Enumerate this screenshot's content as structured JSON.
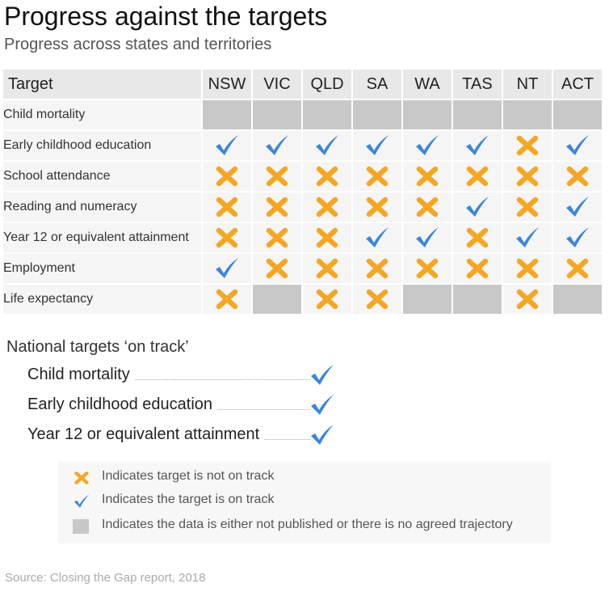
{
  "title": "Progress against the targets",
  "subtitle": "Progress across states and territories",
  "chart_data": {
    "type": "table",
    "header_label": "Target",
    "columns": [
      "NSW",
      "VIC",
      "QLD",
      "SA",
      "WA",
      "TAS",
      "NT",
      "ACT"
    ],
    "rows": [
      {
        "label": "Child mortality",
        "values": [
          "na",
          "na",
          "na",
          "na",
          "na",
          "na",
          "na",
          "na"
        ]
      },
      {
        "label": "Early childhood education",
        "values": [
          "check",
          "check",
          "check",
          "check",
          "check",
          "check",
          "cross",
          "check"
        ]
      },
      {
        "label": "School attendance",
        "values": [
          "cross",
          "cross",
          "cross",
          "cross",
          "cross",
          "cross",
          "cross",
          "cross"
        ]
      },
      {
        "label": "Reading and numeracy",
        "values": [
          "cross",
          "cross",
          "cross",
          "cross",
          "cross",
          "check",
          "cross",
          "check"
        ]
      },
      {
        "label": "Year 12 or equivalent attainment",
        "values": [
          "cross",
          "cross",
          "cross",
          "check",
          "check",
          "cross",
          "check",
          "check"
        ]
      },
      {
        "label": "Employment",
        "values": [
          "check",
          "cross",
          "cross",
          "cross",
          "cross",
          "cross",
          "cross",
          "cross"
        ]
      },
      {
        "label": "Life expectancy",
        "values": [
          "cross",
          "na",
          "cross",
          "cross",
          "na",
          "na",
          "cross",
          "na"
        ]
      }
    ]
  },
  "national": {
    "title": "National targets ‘on track’",
    "items": [
      {
        "label": "Child mortality",
        "status": "check"
      },
      {
        "label": "Early childhood education",
        "status": "check"
      },
      {
        "label": "Year 12 or equivalent attainment",
        "status": "check"
      }
    ]
  },
  "legend": {
    "not_on_track": "Indicates target is not on track",
    "on_track": "Indicates the target is on track",
    "no_data": "Indicates the data is either not published or there is no agreed trajectory"
  },
  "colors": {
    "check": "#3b86d9",
    "cross": "#f5a623",
    "na": "#c8c8c8"
  },
  "source": "Source: Closing the Gap report, 2018"
}
